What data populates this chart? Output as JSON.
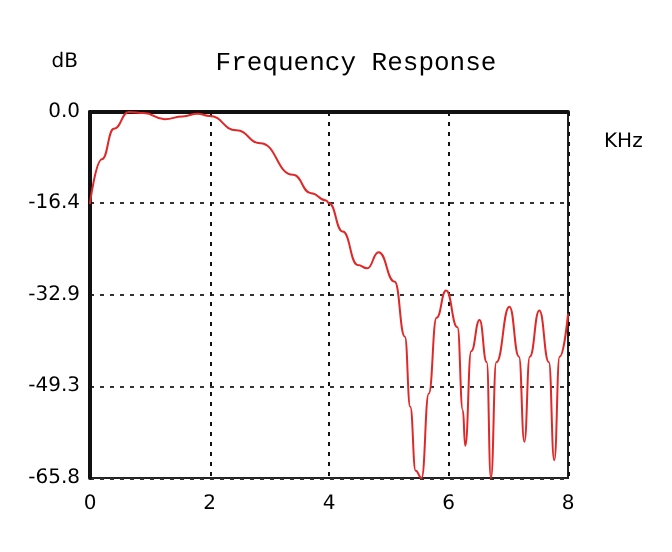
{
  "chart_data": {
    "type": "line",
    "title": "Frequency Response",
    "xlabel": "KHz",
    "ylabel": "dB",
    "x": [
      0,
      0.2,
      0.4,
      0.65,
      0.9,
      1.25,
      1.55,
      1.8,
      2.0,
      2.45,
      2.85,
      3.4,
      3.7,
      3.95,
      4.0,
      4.23,
      4.48,
      4.64,
      4.83,
      5.1,
      5.27,
      5.36,
      5.45,
      5.55,
      5.67,
      5.8,
      5.96,
      6.15,
      6.24,
      6.28,
      6.38,
      6.52,
      6.64,
      6.71,
      6.8,
      7.02,
      7.18,
      7.27,
      7.36,
      7.52,
      7.68,
      7.77,
      7.86,
      8.0
    ],
    "series": [
      {
        "color": "#e02828",
        "values": [
          -16.4,
          -8.5,
          -3,
          0,
          -0.2,
          -1.3,
          -0.8,
          -0.3,
          -0.7,
          -3.3,
          -5.6,
          -11.3,
          -14.6,
          -15.9,
          -16.4,
          -21.5,
          -27.5,
          -28.1,
          -25.2,
          -30.5,
          -40.4,
          -53,
          -64.5,
          -65.8,
          -50.6,
          -37,
          -32.1,
          -38.7,
          -53.6,
          -60,
          -43,
          -37.4,
          -45,
          -65.8,
          -45,
          -35,
          -44,
          -59.3,
          -44,
          -35.7,
          -45,
          -62.6,
          -44,
          -36.4
        ]
      }
    ],
    "xlim": [
      0,
      8
    ],
    "xticks": [
      0,
      2,
      4,
      6,
      8
    ],
    "ylim": [
      -65.8,
      0
    ],
    "yticks": [
      {
        "value": 0,
        "label": "0.0"
      },
      -16.4,
      -32.9,
      -49.3,
      -65.8
    ],
    "grid": true,
    "marker": "none",
    "line_style": "solid"
  }
}
